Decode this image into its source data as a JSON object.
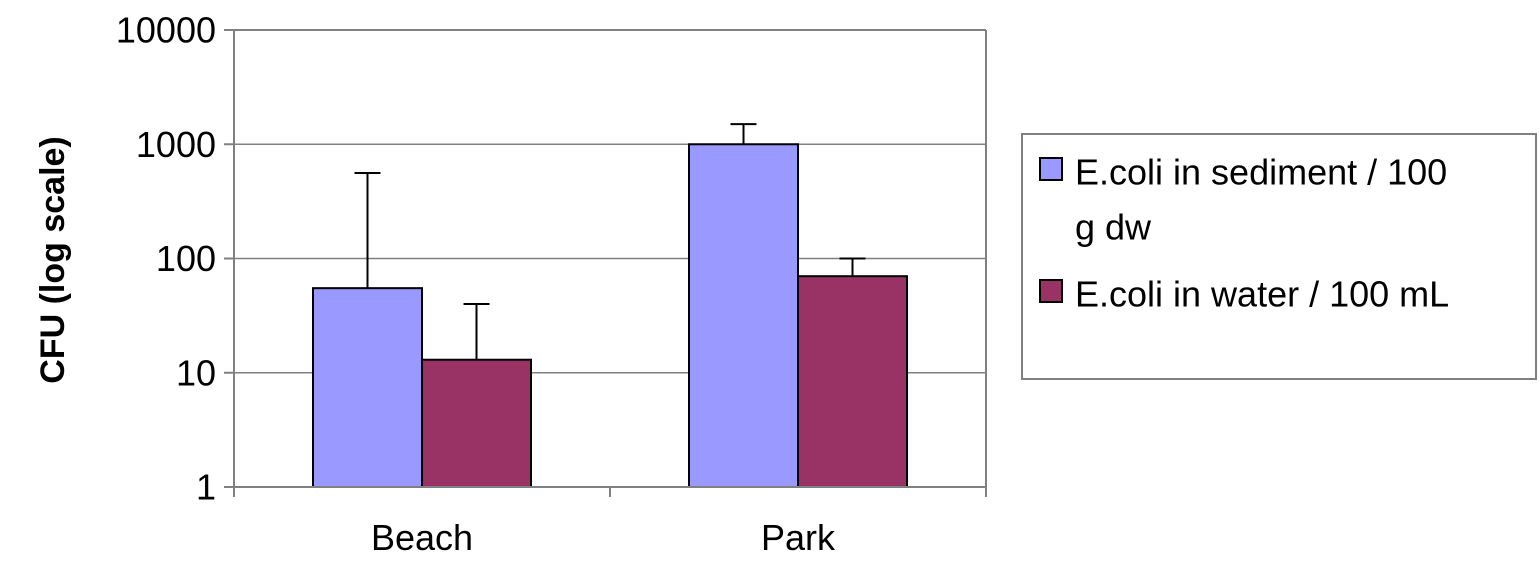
{
  "chart_data": {
    "type": "bar",
    "title": "",
    "xlabel": "",
    "ylabel": "CFU  (log scale)",
    "y_scale": "log",
    "ylim": [
      1,
      10000
    ],
    "y_ticks": [
      "1",
      "10",
      "100",
      "1000",
      "10000"
    ],
    "grid": "horizontal",
    "legend_position": "right",
    "categories": [
      "Beach",
      "Park"
    ],
    "series": [
      {
        "name": "E.coli in sediment / 100 g dw",
        "legend_lines": [
          "E.coli in sediment / 100",
          "g dw"
        ],
        "color": "#9999ff",
        "values": [
          55,
          1000
        ],
        "error_upper": [
          560,
          1500
        ]
      },
      {
        "name": "E.coli in water / 100 mL",
        "legend_lines": [
          "E.coli in water / 100 mL"
        ],
        "color": "#993366",
        "values": [
          13,
          70
        ],
        "error_upper": [
          40,
          100
        ]
      }
    ]
  }
}
